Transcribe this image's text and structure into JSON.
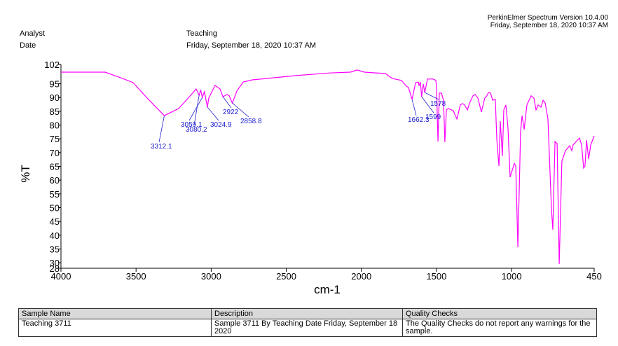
{
  "header": {
    "software": "PerkinElmer Spectrum Version 10.4.00",
    "timestamp": "Friday, September 18, 2020 10:37 AM",
    "analyst_label": "Analyst",
    "analyst_value": "Teaching",
    "date_label": "Date",
    "date_value": "Friday, September 18, 2020 10:37 AM"
  },
  "chart_data": {
    "type": "line",
    "xlabel": "cm-1",
    "ylabel": "%T",
    "xlim": [
      4000,
      450
    ],
    "ylim": [
      28,
      102
    ],
    "x_reversed": true,
    "grid": false,
    "line_color": "#ff00ff",
    "label_color": "#2020d0",
    "x_ticks": [
      "4000",
      "3500",
      "3000",
      "2500",
      "2000",
      "1500",
      "1000",
      "450"
    ],
    "x_tick_values": [
      4000,
      3500,
      3000,
      2500,
      2000,
      1500,
      1000,
      450
    ],
    "y_ticks": [
      "102",
      "95",
      "90",
      "85",
      "80",
      "75",
      "70",
      "65",
      "60",
      "55",
      "50",
      "45",
      "40",
      "35",
      "30",
      "28"
    ],
    "y_tick_values": [
      102,
      95,
      90,
      85,
      80,
      75,
      70,
      65,
      60,
      55,
      50,
      45,
      40,
      35,
      30,
      28
    ],
    "series": [
      {
        "points": [
          [
            4000,
            99.2
          ],
          [
            3706,
            99.2
          ],
          [
            3589,
            96.9
          ],
          [
            3520,
            95.4
          ],
          [
            3426,
            89.8
          ],
          [
            3312.1,
            83.4
          ],
          [
            3216,
            86.0
          ],
          [
            3123,
            91.6
          ],
          [
            3100,
            93.1
          ],
          [
            3080.2,
            90.8
          ],
          [
            3070,
            92.8
          ],
          [
            3059.1,
            90.0
          ],
          [
            3045,
            92.1
          ],
          [
            3024.9,
            86.5
          ],
          [
            3016,
            89.8
          ],
          [
            2974,
            94.4
          ],
          [
            2941,
            93.1
          ],
          [
            2922,
            90.3
          ],
          [
            2894,
            91.1
          ],
          [
            2880,
            90.6
          ],
          [
            2858.8,
            88.0
          ],
          [
            2829,
            92.3
          ],
          [
            2787,
            95.6
          ],
          [
            2726,
            96.4
          ],
          [
            2633,
            96.9
          ],
          [
            2447,
            97.9
          ],
          [
            2213,
            98.9
          ],
          [
            2073,
            99.2
          ],
          [
            2027,
            100.0
          ],
          [
            1980,
            99.2
          ],
          [
            1840,
            98.7
          ],
          [
            1793,
            96.9
          ],
          [
            1733,
            96.2
          ],
          [
            1700,
            94.1
          ],
          [
            1686,
            93.6
          ],
          [
            1662.3,
            89.3
          ],
          [
            1639,
            95.4
          ],
          [
            1621,
            95.6
          ],
          [
            1616,
            94.4
          ],
          [
            1607,
            95.6
          ],
          [
            1599,
            90.3
          ],
          [
            1588,
            94.9
          ],
          [
            1578,
            91.8
          ],
          [
            1560,
            96.7
          ],
          [
            1523,
            96.7
          ],
          [
            1504,
            96.2
          ],
          [
            1500,
            94.1
          ],
          [
            1490,
            74.0
          ],
          [
            1481,
            91.6
          ],
          [
            1467,
            91.6
          ],
          [
            1453,
            89.0
          ],
          [
            1444,
            73.8
          ],
          [
            1434,
            85.5
          ],
          [
            1420,
            86.0
          ],
          [
            1388,
            85.2
          ],
          [
            1364,
            82.2
          ],
          [
            1341,
            87.3
          ],
          [
            1327,
            87.8
          ],
          [
            1313,
            87.3
          ],
          [
            1294,
            85.5
          ],
          [
            1280,
            88.0
          ],
          [
            1257,
            90.6
          ],
          [
            1243,
            91.1
          ],
          [
            1224,
            89.8
          ],
          [
            1201,
            84.7
          ],
          [
            1178,
            89.8
          ],
          [
            1164,
            90.6
          ],
          [
            1154,
            91.8
          ],
          [
            1140,
            91.6
          ],
          [
            1126,
            89.0
          ],
          [
            1108,
            89.3
          ],
          [
            1098,
            74.5
          ],
          [
            1084,
            65.1
          ],
          [
            1075,
            81.4
          ],
          [
            1061,
            68.7
          ],
          [
            1052,
            85.5
          ],
          [
            1038,
            87.3
          ],
          [
            1024,
            78.9
          ],
          [
            1010,
            61.1
          ],
          [
            991,
            64.4
          ],
          [
            982,
            66.1
          ],
          [
            972,
            65.1
          ],
          [
            958,
            35.6
          ],
          [
            940,
            77.8
          ],
          [
            930,
            83.4
          ],
          [
            916,
            78.4
          ],
          [
            898,
            87.3
          ],
          [
            870,
            90.6
          ],
          [
            851,
            89.8
          ],
          [
            837,
            85.5
          ],
          [
            823,
            87.3
          ],
          [
            804,
            86.5
          ],
          [
            790,
            89.0
          ],
          [
            776,
            88.0
          ],
          [
            758,
            82.2
          ],
          [
            734,
            49.1
          ],
          [
            725,
            42.0
          ],
          [
            711,
            74.0
          ],
          [
            697,
            73.3
          ],
          [
            683,
            29.5
          ],
          [
            665,
            66.9
          ],
          [
            641,
            70.7
          ],
          [
            613,
            72.5
          ],
          [
            599,
            70.7
          ],
          [
            590,
            72.8
          ],
          [
            548,
            75.3
          ],
          [
            534,
            72.8
          ],
          [
            520,
            64.4
          ],
          [
            511,
            65.1
          ],
          [
            501,
            74.5
          ],
          [
            487,
            67.7
          ],
          [
            473,
            72.8
          ],
          [
            455,
            75.3
          ],
          [
            450,
            76.1
          ]
        ]
      }
    ],
    "peak_labels": [
      {
        "text": "3312.1",
        "x": 3312.1,
        "y": 83.4
      },
      {
        "text": "3080.2",
        "x": 3080.2,
        "y": 90.8
      },
      {
        "text": "3059.1",
        "x": 3059.1,
        "y": 90.0
      },
      {
        "text": "3024.9",
        "x": 3024.9,
        "y": 86.5
      },
      {
        "text": "2922",
        "x": 2922,
        "y": 90.3
      },
      {
        "text": "2858.8",
        "x": 2858.8,
        "y": 88.0
      },
      {
        "text": "1662.3",
        "x": 1662.3,
        "y": 89.3
      },
      {
        "text": "1599",
        "x": 1599,
        "y": 90.3
      },
      {
        "text": "1578",
        "x": 1578,
        "y": 91.8
      }
    ]
  },
  "table": {
    "headers": [
      "Sample Name",
      "Description",
      "Quality Checks"
    ],
    "row": [
      "Teaching 3711",
      "Sample 3711 By Teaching Date Friday, September 18 2020",
      "The Quality Checks do not report any warnings for the sample."
    ]
  }
}
